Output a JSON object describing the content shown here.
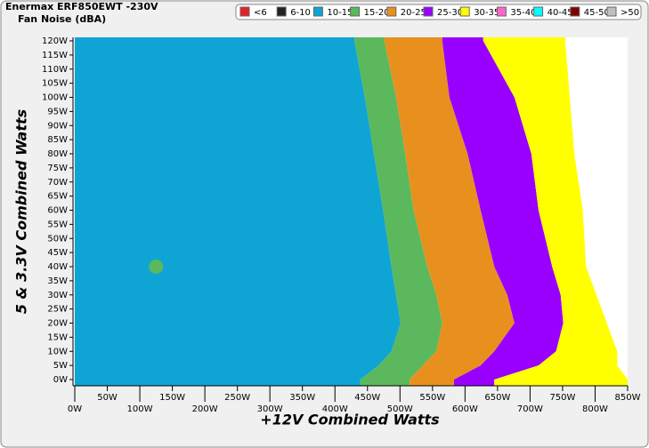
{
  "chart_data": {
    "type": "region-map",
    "title": "Enermax ERF850EWT -230V",
    "subtitle": "Fan Noise (dBA)",
    "xlabel": "+12V Combined Watts",
    "ylabel": "5 & 3.3V Combined Watts",
    "xlim": [
      0,
      850
    ],
    "ylim": [
      0,
      120
    ],
    "xticks": [
      {
        "value": 0,
        "label": "0W"
      },
      {
        "value": 50,
        "label": "50W"
      },
      {
        "value": 100,
        "label": "100W"
      },
      {
        "value": 150,
        "label": "150W"
      },
      {
        "value": 200,
        "label": "200W"
      },
      {
        "value": 250,
        "label": "250W"
      },
      {
        "value": 300,
        "label": "300W"
      },
      {
        "value": 350,
        "label": "350W"
      },
      {
        "value": 400,
        "label": "400W"
      },
      {
        "value": 450,
        "label": "450W"
      },
      {
        "value": 500,
        "label": "500W"
      },
      {
        "value": 550,
        "label": "550W"
      },
      {
        "value": 600,
        "label": "600W"
      },
      {
        "value": 650,
        "label": "650W"
      },
      {
        "value": 700,
        "label": "700W"
      },
      {
        "value": 750,
        "label": "750W"
      },
      {
        "value": 800,
        "label": "800W"
      },
      {
        "value": 850,
        "label": "850W"
      }
    ],
    "yticks": [
      {
        "value": 0,
        "label": "0W"
      },
      {
        "value": 5,
        "label": "5W"
      },
      {
        "value": 10,
        "label": "10W"
      },
      {
        "value": 15,
        "label": "15W"
      },
      {
        "value": 20,
        "label": "20W"
      },
      {
        "value": 25,
        "label": "25W"
      },
      {
        "value": 30,
        "label": "30W"
      },
      {
        "value": 35,
        "label": "35W"
      },
      {
        "value": 40,
        "label": "40W"
      },
      {
        "value": 45,
        "label": "45W"
      },
      {
        "value": 50,
        "label": "50W"
      },
      {
        "value": 55,
        "label": "55W"
      },
      {
        "value": 60,
        "label": "60W"
      },
      {
        "value": 65,
        "label": "65W"
      },
      {
        "value": 70,
        "label": "70W"
      },
      {
        "value": 75,
        "label": "75W"
      },
      {
        "value": 80,
        "label": "80W"
      },
      {
        "value": 85,
        "label": "85W"
      },
      {
        "value": 90,
        "label": "90W"
      },
      {
        "value": 95,
        "label": "95W"
      },
      {
        "value": 100,
        "label": "100W"
      },
      {
        "value": 105,
        "label": "105W"
      },
      {
        "value": 110,
        "label": "110W"
      },
      {
        "value": 115,
        "label": "115W"
      },
      {
        "value": 120,
        "label": "120W"
      }
    ],
    "y": [
      0,
      5,
      10,
      20,
      30,
      40,
      60,
      80,
      100,
      120
    ],
    "legend": [
      {
        "name": "<6",
        "color": "#e8202a"
      },
      {
        "name": "6-10",
        "color": "#222222"
      },
      {
        "name": "10-15",
        "color": "#0ea5d4"
      },
      {
        "name": "15-20",
        "color": "#5cb85c"
      },
      {
        "name": "20-25",
        "color": "#e8901e"
      },
      {
        "name": "25-30",
        "color": "#9900ff"
      },
      {
        "name": "30-35",
        "color": "#ffff00"
      },
      {
        "name": "35-40",
        "color": "#ff66cc"
      },
      {
        "name": "40-45",
        "color": "#00ffff"
      },
      {
        "name": "45-50",
        "color": "#800000"
      },
      {
        "name": ">50",
        "color": "#c0c0c0"
      }
    ],
    "series": [
      {
        "name": "10-15",
        "color": "#0ea5d4",
        "values": [
          439,
          467,
          487,
          501,
          494,
          487,
          474,
          460,
          446,
          430
        ]
      },
      {
        "name": "15-20",
        "color": "#5cb85c",
        "values": [
          515,
          535,
          556,
          565,
          556,
          542,
          521,
          508,
          494,
          476
        ],
        "points_x": [
          125
        ],
        "points_y": [
          40
        ]
      },
      {
        "name": "20-25",
        "color": "#e8901e",
        "values": [
          583,
          624,
          645,
          676,
          665,
          645,
          624,
          604,
          576,
          565
        ]
      },
      {
        "name": "25-30",
        "color": "#9900ff",
        "values": [
          645,
          713,
          740,
          751,
          747,
          734,
          713,
          702,
          676,
          628
        ]
      },
      {
        "name": "30-35",
        "color": "#ffff00",
        "values": [
          850,
          834,
          834,
          818,
          802,
          786,
          781,
          768,
          761,
          754
        ]
      }
    ]
  }
}
